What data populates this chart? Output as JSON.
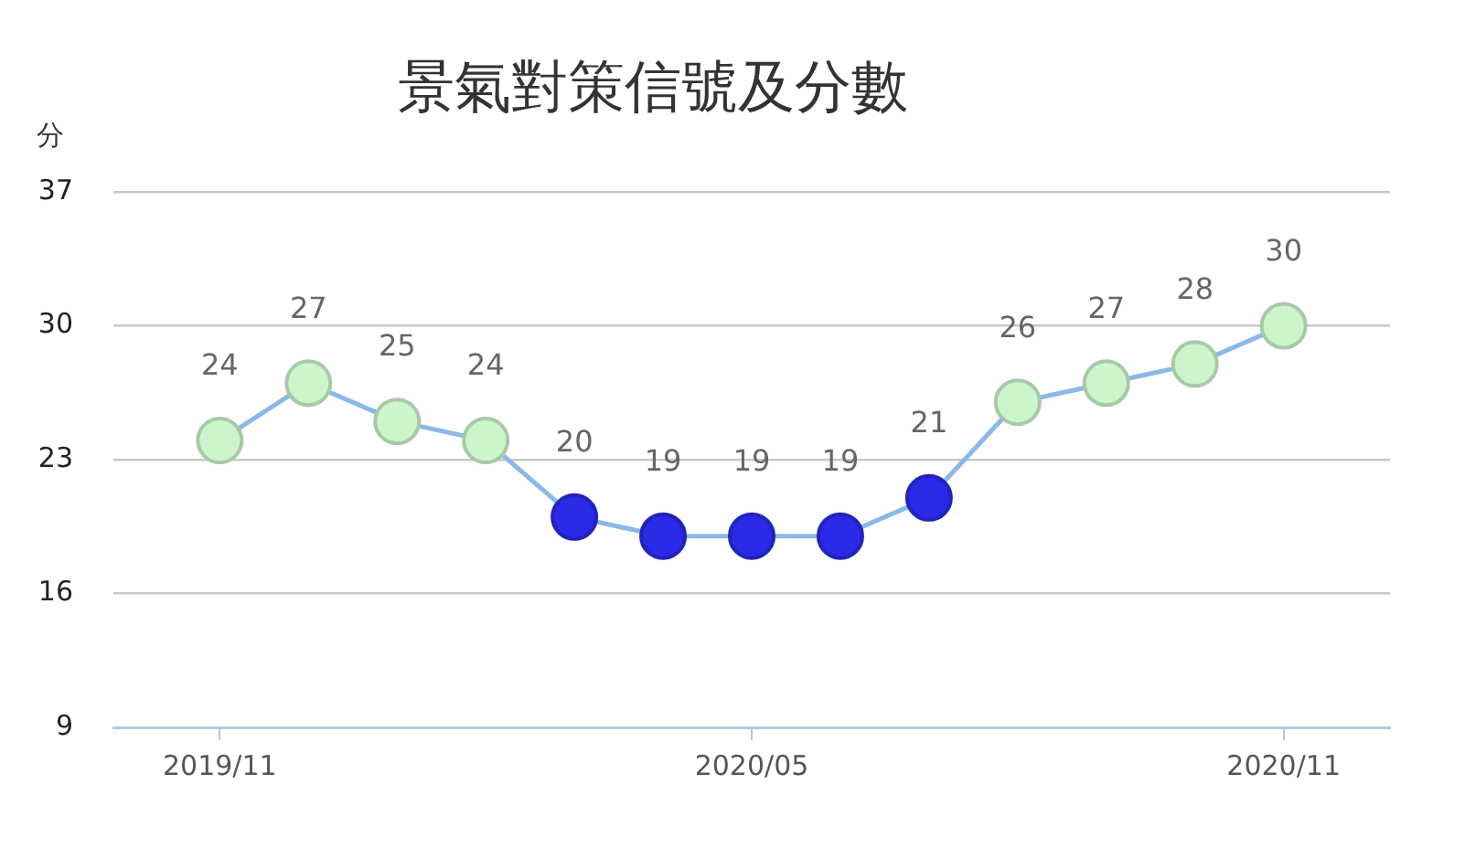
{
  "chart_data": {
    "type": "line",
    "title": "景氣對策信號及分數",
    "ylabel": "分",
    "categories": [
      "2019/11",
      null,
      null,
      null,
      null,
      null,
      "2020/05",
      null,
      null,
      null,
      null,
      null,
      "2020/11"
    ],
    "series": [
      {
        "color": "#8ab8e8",
        "colors": [
          "#ccf5cc",
          "#ccf5cc",
          "#ccf5cc",
          "#ccf5cc",
          "#2a2ae6",
          "#2a2ae6",
          "#2a2ae6",
          "#2a2ae6",
          "#2a2ae6",
          "#ccf5cc",
          "#ccf5cc",
          "#ccf5cc",
          "#ccf5cc"
        ],
        "values": [
          24,
          27,
          25,
          24,
          20,
          19,
          19,
          19,
          21,
          26,
          27,
          28,
          30
        ]
      }
    ],
    "ylim": [
      9,
      37
    ],
    "yticks": [
      9,
      16,
      23,
      30,
      37
    ],
    "grid": "y",
    "marker": "circle",
    "line_style": "solid",
    "data_labels": true
  }
}
